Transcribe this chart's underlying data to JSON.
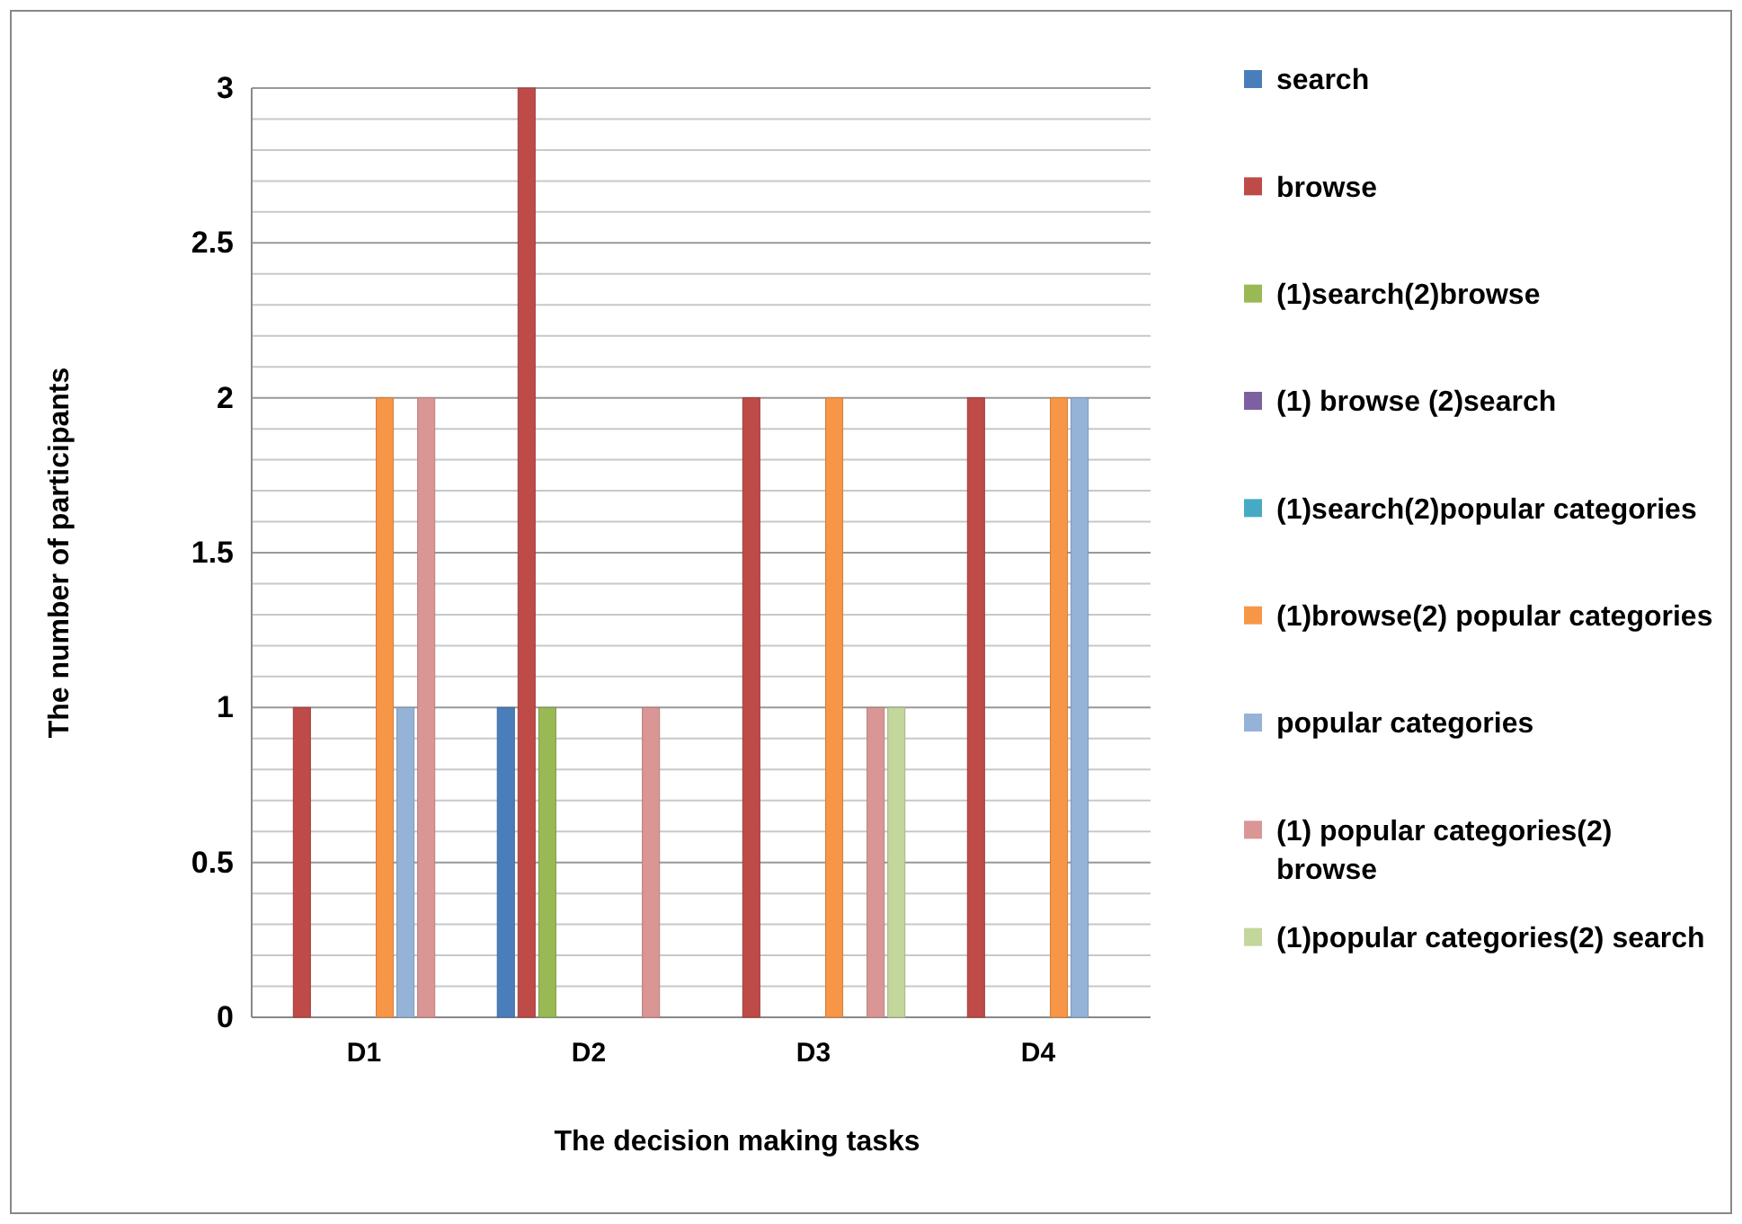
{
  "chart_data": {
    "type": "bar",
    "xlabel": "The decision making tasks",
    "ylabel": "The number of participants",
    "categories": [
      "D1",
      "D2",
      "D3",
      "D4"
    ],
    "series": [
      {
        "name": "search",
        "color": "#4a7ebb",
        "values": [
          0,
          1,
          0,
          0
        ]
      },
      {
        "name": "browse",
        "color": "#be4b48",
        "values": [
          1,
          3,
          2,
          2
        ]
      },
      {
        "name": "(1)search(2)browse",
        "color": "#98b954",
        "values": [
          0,
          1,
          0,
          0
        ]
      },
      {
        "name": "(1) browse (2)search",
        "color": "#7d60a0",
        "values": [
          0,
          0,
          0,
          0
        ]
      },
      {
        "name": "(1)search(2)popular categories",
        "color": "#46aac5",
        "values": [
          0,
          0,
          0,
          0
        ]
      },
      {
        "name": "(1)browse(2) popular categories",
        "color": "#f79646",
        "values": [
          2,
          0,
          2,
          2
        ]
      },
      {
        "name": "popular categories",
        "color": "#95b3d7",
        "values": [
          1,
          0,
          0,
          2
        ]
      },
      {
        "name": "(1) popular categories(2) browse",
        "color": "#d99694",
        "values": [
          2,
          1,
          1,
          0
        ]
      },
      {
        "name": "(1)popular categories(2) search",
        "color": "#c3d69b",
        "values": [
          0,
          0,
          1,
          0
        ]
      }
    ],
    "ylim": [
      0,
      3
    ],
    "yticks": [
      0,
      {
        "value": 0.1,
        "label": null
      },
      {
        "value": 0.2,
        "label": null
      },
      {
        "value": 0.3,
        "label": null
      },
      {
        "value": 0.4,
        "label": null
      },
      0.5,
      {
        "value": 0.6,
        "label": null
      },
      {
        "value": 0.7,
        "label": null
      },
      {
        "value": 0.8,
        "label": null
      },
      {
        "value": 0.9,
        "label": null
      },
      1,
      {
        "value": 1.1,
        "label": null
      },
      {
        "value": 1.2,
        "label": null
      },
      {
        "value": 1.3,
        "label": null
      },
      {
        "value": 1.4,
        "label": null
      },
      1.5,
      {
        "value": 1.6,
        "label": null
      },
      {
        "value": 1.7,
        "label": null
      },
      {
        "value": 1.8,
        "label": null
      },
      {
        "value": 1.9,
        "label": null
      },
      2,
      {
        "value": 2.1,
        "label": null
      },
      {
        "value": 2.2,
        "label": null
      },
      {
        "value": 2.3,
        "label": null
      },
      {
        "value": 2.4,
        "label": null
      },
      2.5,
      {
        "value": 2.6,
        "label": null
      },
      {
        "value": 2.7,
        "label": null
      },
      {
        "value": 2.8,
        "label": null
      },
      {
        "value": 2.9,
        "label": null
      },
      3
    ],
    "grid": "y",
    "legend": "right"
  }
}
